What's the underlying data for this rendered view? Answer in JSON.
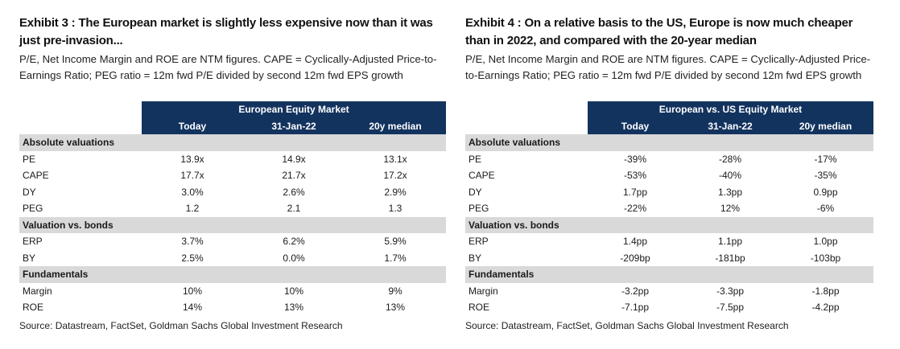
{
  "exhibit3": {
    "title": "Exhibit 3 : The European market is slightly less expensive now than it was just pre-invasion...",
    "subtitle": "P/E, Net Income Margin and ROE are NTM figures. CAPE = Cyclically-Adjusted Price-to-Earnings Ratio; PEG ratio = 12m fwd P/E divided by second 12m fwd EPS growth",
    "table_header": "European Equity Market",
    "columns": [
      "Today",
      "31-Jan-22",
      "20y median"
    ],
    "sections": [
      {
        "name": "Absolute valuations",
        "rows": [
          {
            "label": "PE",
            "values": [
              "13.9x",
              "14.9x",
              "13.1x"
            ]
          },
          {
            "label": "CAPE",
            "values": [
              "17.7x",
              "21.7x",
              "17.2x"
            ]
          },
          {
            "label": "DY",
            "values": [
              "3.0%",
              "2.6%",
              "2.9%"
            ]
          },
          {
            "label": "PEG",
            "values": [
              "1.2",
              "2.1",
              "1.3"
            ]
          }
        ]
      },
      {
        "name": "Valuation vs. bonds",
        "rows": [
          {
            "label": "ERP",
            "values": [
              "3.7%",
              "6.2%",
              "5.9%"
            ]
          },
          {
            "label": "BY",
            "values": [
              "2.5%",
              "0.0%",
              "1.7%"
            ]
          }
        ]
      },
      {
        "name": "Fundamentals",
        "rows": [
          {
            "label": "Margin",
            "values": [
              "10%",
              "10%",
              "9%"
            ]
          },
          {
            "label": "ROE",
            "values": [
              "14%",
              "13%",
              "13%"
            ]
          }
        ]
      }
    ],
    "source": "Source: Datastream, FactSet, Goldman Sachs Global Investment Research"
  },
  "exhibit4": {
    "title": "Exhibit 4 : On a relative basis to the US, Europe is now much cheaper than in 2022, and compared with the 20-year median",
    "subtitle": "P/E, Net Income Margin and ROE are NTM figures. CAPE = Cyclically-Adjusted Price-to-Earnings Ratio; PEG ratio = 12m fwd P/E divided by second 12m fwd EPS growth",
    "table_header": "European vs. US Equity Market",
    "columns": [
      "Today",
      "31-Jan-22",
      "20y median"
    ],
    "sections": [
      {
        "name": "Absolute valuations",
        "rows": [
          {
            "label": "PE",
            "values": [
              "-39%",
              "-28%",
              "-17%"
            ]
          },
          {
            "label": "CAPE",
            "values": [
              "-53%",
              "-40%",
              "-35%"
            ]
          },
          {
            "label": "DY",
            "values": [
              "1.7pp",
              "1.3pp",
              "0.9pp"
            ]
          },
          {
            "label": "PEG",
            "values": [
              "-22%",
              "12%",
              "-6%"
            ]
          }
        ]
      },
      {
        "name": "Valuation vs. bonds",
        "rows": [
          {
            "label": "ERP",
            "values": [
              "1.4pp",
              "1.1pp",
              "1.0pp"
            ]
          },
          {
            "label": "BY",
            "values": [
              "-209bp",
              "-181bp",
              "-103bp"
            ]
          }
        ]
      },
      {
        "name": "Fundamentals",
        "rows": [
          {
            "label": "Margin",
            "values": [
              "-3.2pp",
              "-3.3pp",
              "-1.8pp"
            ]
          },
          {
            "label": "ROE",
            "values": [
              "-7.1pp",
              "-7.5pp",
              "-4.2pp"
            ]
          }
        ]
      }
    ],
    "source": "Source: Datastream, FactSet, Goldman Sachs Global Investment Research"
  },
  "colors": {
    "header_navy": "#13335f",
    "section_gray": "#d9d9d9"
  }
}
